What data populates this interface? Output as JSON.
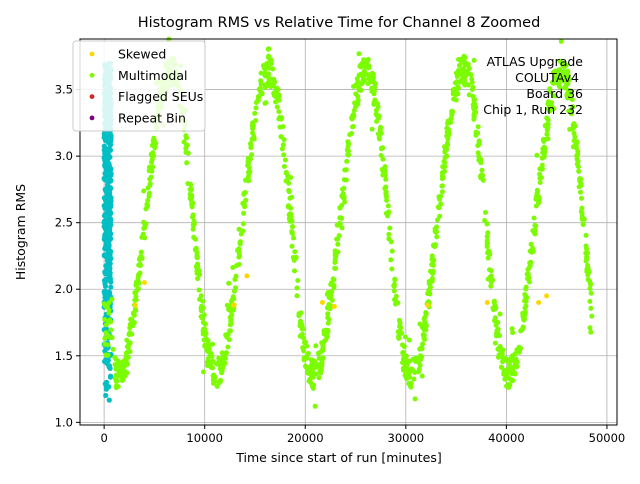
{
  "chart_data": {
    "type": "scatter",
    "title": "Histogram RMS vs Relative Time for Channel 8 Zoomed",
    "xlabel": "Time since start of run [minutes]",
    "ylabel": "Histogram RMS",
    "xlim": [
      -2400,
      51000
    ],
    "ylim": [
      0.98,
      3.88
    ],
    "x_ticks": [
      0,
      10000,
      20000,
      30000,
      40000,
      50000
    ],
    "x_tick_labels": [
      "0",
      "10000",
      "20000",
      "30000",
      "40000",
      "50000"
    ],
    "y_ticks": [
      1.0,
      1.5,
      2.0,
      2.5,
      3.0,
      3.5
    ],
    "y_tick_labels": [
      "1.0",
      "1.5",
      "2.0",
      "2.5",
      "3.0",
      "3.5"
    ],
    "grid": true,
    "legend_position": "top-left",
    "legend": [
      {
        "label": "Skewed",
        "color": "#ffd700"
      },
      {
        "label": "Multimodal",
        "color": "#7cfc00"
      },
      {
        "label": "Flagged SEUs",
        "color": "#d62728"
      },
      {
        "label": "Repeat Bin",
        "color": "#800080"
      }
    ],
    "extra_series_color": "#00bfc4",
    "annotation_lines": [
      "ATLAS Upgrade",
      "COLUTAv4",
      "Board 36",
      "Chip 1, Run 232"
    ],
    "series": [
      {
        "name": "Multimodal",
        "color": "#7cfc00",
        "model": "periodic",
        "period_minutes": 9700,
        "peak_minutes": [
          6700,
          16400,
          26100,
          35800,
          45500
        ],
        "trough_minutes": [
          1500,
          11200,
          20900,
          30600,
          40300
        ],
        "x_range": [
          1000,
          48500
        ],
        "y_min": 1.3,
        "y_max": 3.7
      },
      {
        "name": "Skewed",
        "color": "#ffd700",
        "points": [
          [
            3100,
            1.88
          ],
          [
            4000,
            2.05
          ],
          [
            12900,
            1.88
          ],
          [
            14200,
            2.1
          ],
          [
            21700,
            1.9
          ],
          [
            22900,
            1.87
          ],
          [
            32200,
            1.88
          ],
          [
            38100,
            1.9
          ],
          [
            43200,
            1.9
          ],
          [
            44000,
            1.95
          ]
        ]
      },
      {
        "name": "unlabeled-cyan",
        "color": "#00bfc4",
        "x_range": [
          0,
          700
        ],
        "y_range": [
          1.12,
          3.7
        ]
      }
    ]
  }
}
